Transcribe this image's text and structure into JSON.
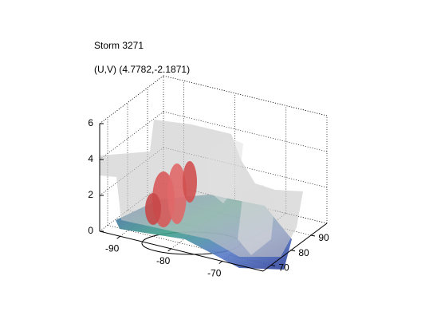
{
  "chart_data": {
    "type": "surface3d",
    "title": "Storm 3271",
    "subtitle": "(U,V) (4.7782,-2.1871)",
    "xlim": [
      -94,
      -62
    ],
    "xticks": [
      -90,
      -80,
      -70
    ],
    "ylim": [
      66,
      98
    ],
    "yticks": [
      70,
      80,
      90
    ],
    "zlim": [
      0,
      6
    ],
    "zticks": [
      0,
      2,
      4,
      6
    ],
    "grid": true
  }
}
